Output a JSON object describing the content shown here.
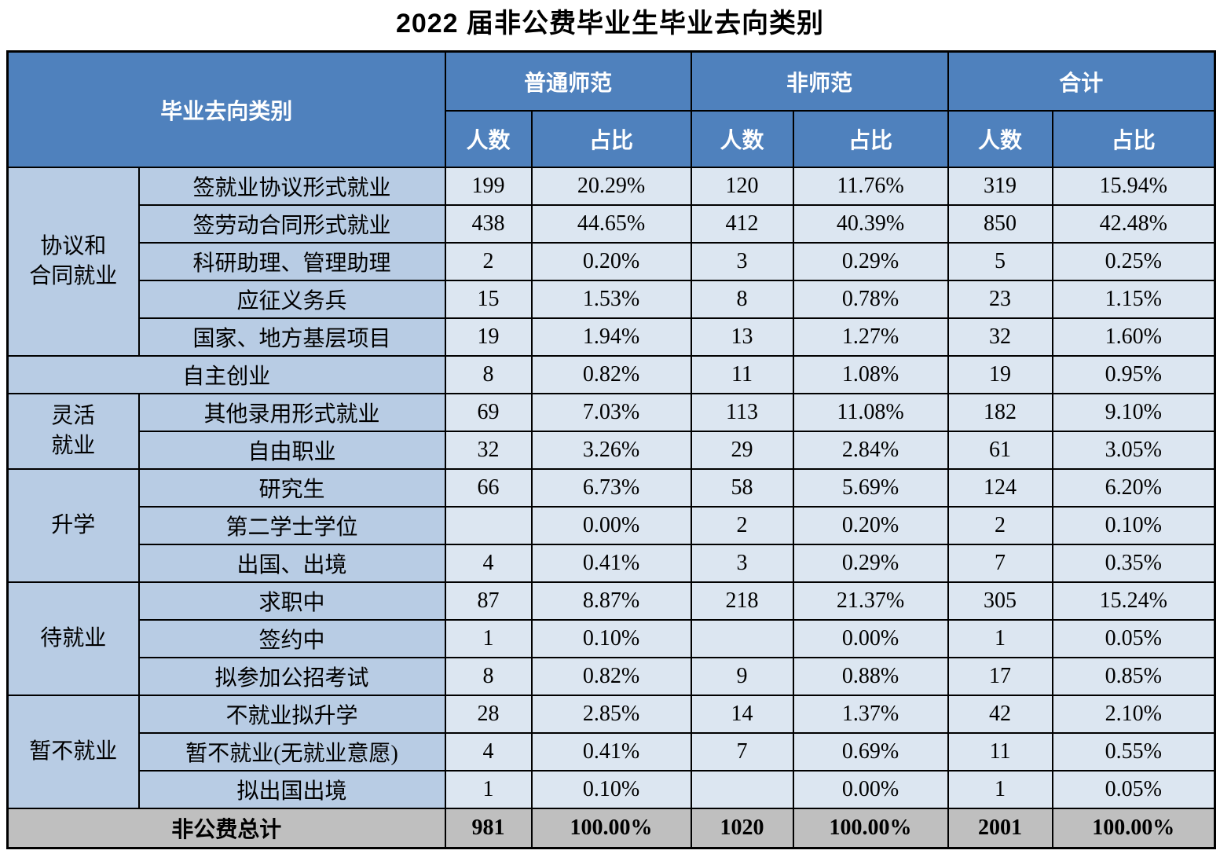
{
  "title": "2022 届非公费毕业生毕业去向类别",
  "colors": {
    "header_bg": "#4f81bd",
    "header_text": "#ffffff",
    "group_column_bg": "#b8cce4",
    "data_cell_bg": "#dce6f1",
    "total_row_bg": "#bfbfbf",
    "border": "#000000"
  },
  "table": {
    "header": {
      "category_label": "毕业去向类别",
      "groups": [
        "普通师范",
        "非师范",
        "合计"
      ],
      "sub_headers": [
        "人数",
        "占比"
      ]
    },
    "sections": [
      {
        "group": "协议和\n合同就业",
        "rows": [
          {
            "label": "签就业协议形式就业",
            "values": [
              "199",
              "20.29%",
              "120",
              "11.76%",
              "319",
              "15.94%"
            ]
          },
          {
            "label": "签劳动合同形式就业",
            "values": [
              "438",
              "44.65%",
              "412",
              "40.39%",
              "850",
              "42.48%"
            ]
          },
          {
            "label": "科研助理、管理助理",
            "values": [
              "2",
              "0.20%",
              "3",
              "0.29%",
              "5",
              "0.25%"
            ]
          },
          {
            "label": "应征义务兵",
            "values": [
              "15",
              "1.53%",
              "8",
              "0.78%",
              "23",
              "1.15%"
            ]
          },
          {
            "label": "国家、地方基层项目",
            "values": [
              "19",
              "1.94%",
              "13",
              "1.27%",
              "32",
              "1.60%"
            ]
          }
        ]
      },
      {
        "group": null,
        "rows": [
          {
            "label": "自主创业",
            "values": [
              "8",
              "0.82%",
              "11",
              "1.08%",
              "19",
              "0.95%"
            ]
          }
        ]
      },
      {
        "group": "灵活\n就业",
        "rows": [
          {
            "label": "其他录用形式就业",
            "values": [
              "69",
              "7.03%",
              "113",
              "11.08%",
              "182",
              "9.10%"
            ]
          },
          {
            "label": "自由职业",
            "values": [
              "32",
              "3.26%",
              "29",
              "2.84%",
              "61",
              "3.05%"
            ]
          }
        ]
      },
      {
        "group": "升学",
        "rows": [
          {
            "label": "研究生",
            "values": [
              "66",
              "6.73%",
              "58",
              "5.69%",
              "124",
              "6.20%"
            ]
          },
          {
            "label": "第二学士学位",
            "values": [
              "",
              "0.00%",
              "2",
              "0.20%",
              "2",
              "0.10%"
            ]
          },
          {
            "label": "出国、出境",
            "values": [
              "4",
              "0.41%",
              "3",
              "0.29%",
              "7",
              "0.35%"
            ]
          }
        ]
      },
      {
        "group": "待就业",
        "rows": [
          {
            "label": "求职中",
            "values": [
              "87",
              "8.87%",
              "218",
              "21.37%",
              "305",
              "15.24%"
            ]
          },
          {
            "label": "签约中",
            "values": [
              "1",
              "0.10%",
              "",
              "0.00%",
              "1",
              "0.05%"
            ]
          },
          {
            "label": "拟参加公招考试",
            "values": [
              "8",
              "0.82%",
              "9",
              "0.88%",
              "17",
              "0.85%"
            ]
          }
        ]
      },
      {
        "group": "暂不就业",
        "rows": [
          {
            "label": "不就业拟升学",
            "values": [
              "28",
              "2.85%",
              "14",
              "1.37%",
              "42",
              "2.10%"
            ]
          },
          {
            "label": "暂不就业(无就业意愿)",
            "values": [
              "4",
              "0.41%",
              "7",
              "0.69%",
              "11",
              "0.55%"
            ]
          },
          {
            "label": "拟出国出境",
            "values": [
              "1",
              "0.10%",
              "",
              "0.00%",
              "1",
              "0.05%"
            ]
          }
        ]
      }
    ],
    "total": {
      "label": "非公费总计",
      "values": [
        "981",
        "100.00%",
        "1020",
        "100.00%",
        "2001",
        "100.00%"
      ]
    }
  }
}
